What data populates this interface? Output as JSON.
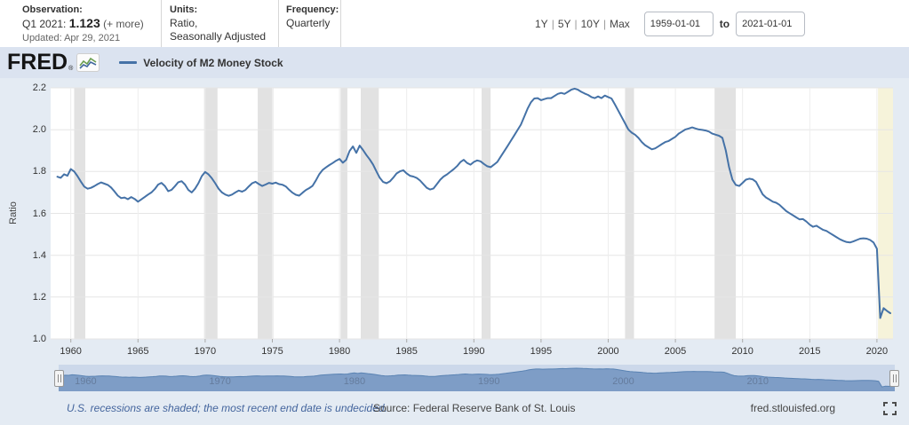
{
  "header": {
    "observation": {
      "label": "Observation:",
      "value_prefix": "Q1 2021:",
      "value": "1.123",
      "more": "(+ more)",
      "updated": "Updated: Apr 29, 2021"
    },
    "units": {
      "label": "Units:",
      "line1": "Ratio,",
      "line2": "Seasonally Adjusted"
    },
    "frequency": {
      "label": "Frequency:",
      "value": "Quarterly"
    },
    "range_selector": {
      "options": [
        "1Y",
        "5Y",
        "10Y",
        "Max"
      ],
      "separator": "|",
      "from": "1959-01-01",
      "to_label": "to",
      "to": "2021-01-01"
    }
  },
  "brand": {
    "logo_text": "FRED",
    "reg_mark": "®",
    "icon": "line-chart-icon"
  },
  "legend": {
    "series_label": "Velocity of M2 Money Stock",
    "series_color": "#4572a7"
  },
  "footer": {
    "recessions_note": "U.S. recessions are shaded; the most recent end date is undecided.",
    "source": "Source: Federal Reserve Bank of St. Louis",
    "site": "fred.stlouisfed.org",
    "fullscreen_icon": "expand-icon"
  },
  "chart_data": {
    "type": "line",
    "title": "Velocity of M2 Money Stock",
    "ylabel": "Ratio",
    "xlabel": "",
    "xlim": [
      1958.5,
      2021.2
    ],
    "ylim": [
      1.0,
      2.2
    ],
    "yticks": [
      1.0,
      1.2,
      1.4,
      1.6,
      1.8,
      2.0,
      2.2
    ],
    "xticks": [
      1960,
      1965,
      1970,
      1975,
      1980,
      1985,
      1990,
      1995,
      2000,
      2005,
      2010,
      2015,
      2020
    ],
    "grid": true,
    "line_color": "#4572a7",
    "grid_color": "#e6e6e6",
    "vgrid_color": "#ededed",
    "band_color": "#e2e2e2",
    "undecided_band_color": "#f6f3da",
    "recession_bands": [
      [
        1960.25,
        1961.08
      ],
      [
        1969.92,
        1970.92
      ],
      [
        1973.92,
        1975.08
      ],
      [
        1980.08,
        1980.58
      ],
      [
        1981.58,
        1982.92
      ],
      [
        1990.58,
        1991.25
      ],
      [
        2001.25,
        2001.92
      ],
      [
        2007.92,
        2009.5
      ]
    ],
    "undecided_band": [
      2020.08,
      2021.2
    ],
    "series": [
      {
        "name": "Velocity of M2 Money Stock",
        "x_start": 1959.0,
        "x_step": 0.25,
        "values": [
          1.775,
          1.77,
          1.787,
          1.78,
          1.812,
          1.8,
          1.778,
          1.752,
          1.728,
          1.718,
          1.722,
          1.73,
          1.74,
          1.748,
          1.742,
          1.736,
          1.724,
          1.705,
          1.685,
          1.673,
          1.676,
          1.668,
          1.678,
          1.669,
          1.656,
          1.667,
          1.678,
          1.69,
          1.7,
          1.716,
          1.738,
          1.746,
          1.731,
          1.706,
          1.713,
          1.73,
          1.749,
          1.754,
          1.738,
          1.712,
          1.7,
          1.718,
          1.744,
          1.778,
          1.798,
          1.786,
          1.768,
          1.744,
          1.718,
          1.7,
          1.69,
          1.684,
          1.69,
          1.7,
          1.709,
          1.704,
          1.712,
          1.729,
          1.744,
          1.751,
          1.74,
          1.731,
          1.738,
          1.746,
          1.742,
          1.747,
          1.74,
          1.737,
          1.729,
          1.713,
          1.699,
          1.689,
          1.685,
          1.699,
          1.712,
          1.721,
          1.732,
          1.758,
          1.788,
          1.808,
          1.82,
          1.831,
          1.841,
          1.852,
          1.86,
          1.842,
          1.856,
          1.898,
          1.92,
          1.889,
          1.924,
          1.903,
          1.879,
          1.858,
          1.833,
          1.8,
          1.77,
          1.75,
          1.744,
          1.753,
          1.771,
          1.791,
          1.801,
          1.806,
          1.791,
          1.78,
          1.776,
          1.769,
          1.757,
          1.739,
          1.722,
          1.714,
          1.719,
          1.74,
          1.761,
          1.776,
          1.786,
          1.799,
          1.811,
          1.826,
          1.845,
          1.856,
          1.841,
          1.833,
          1.846,
          1.853,
          1.849,
          1.836,
          1.825,
          1.821,
          1.833,
          1.846,
          1.871,
          1.896,
          1.921,
          1.946,
          1.972,
          1.998,
          2.024,
          2.062,
          2.1,
          2.131,
          2.149,
          2.151,
          2.141,
          2.146,
          2.151,
          2.151,
          2.161,
          2.171,
          2.176,
          2.171,
          2.181,
          2.191,
          2.196,
          2.191,
          2.181,
          2.173,
          2.166,
          2.156,
          2.151,
          2.159,
          2.151,
          2.163,
          2.156,
          2.149,
          2.121,
          2.091,
          2.061,
          2.031,
          2.001,
          1.986,
          1.976,
          1.961,
          1.941,
          1.926,
          1.916,
          1.906,
          1.911,
          1.921,
          1.931,
          1.941,
          1.946,
          1.956,
          1.966,
          1.981,
          1.991,
          2.001,
          2.006,
          2.011,
          2.006,
          2.001,
          1.999,
          1.996,
          1.991,
          1.981,
          1.976,
          1.971,
          1.961,
          1.901,
          1.821,
          1.761,
          1.736,
          1.731,
          1.746,
          1.761,
          1.766,
          1.763,
          1.751,
          1.721,
          1.691,
          1.676,
          1.666,
          1.656,
          1.651,
          1.641,
          1.626,
          1.611,
          1.601,
          1.591,
          1.581,
          1.571,
          1.573,
          1.561,
          1.546,
          1.536,
          1.541,
          1.531,
          1.521,
          1.516,
          1.506,
          1.496,
          1.486,
          1.476,
          1.469,
          1.463,
          1.461,
          1.466,
          1.473,
          1.479,
          1.481,
          1.479,
          1.473,
          1.461,
          1.431,
          1.1,
          1.147,
          1.134,
          1.123
        ]
      }
    ],
    "navigator": {
      "labels": [
        1960,
        1970,
        1980,
        1990,
        2000,
        2010
      ],
      "fill": "#7e9dc6",
      "line": "#5a83b3",
      "background": "#ccd8ea"
    }
  }
}
